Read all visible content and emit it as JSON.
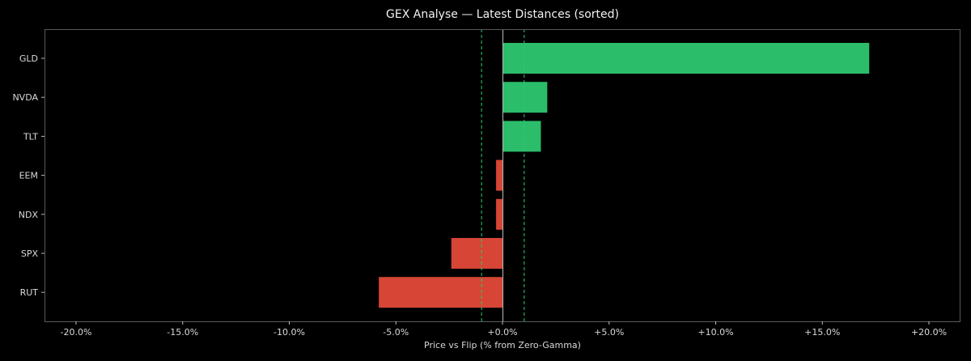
{
  "chart_data": {
    "type": "bar",
    "orientation": "horizontal",
    "title": "GEX Analyse — Latest Distances (sorted)",
    "xlabel": "Price vs Flip (% from Zero-Gamma)",
    "ylabel": "",
    "xlim": [
      -22,
      21.5
    ],
    "categories": [
      "GLD",
      "NVDA",
      "TLT",
      "EEM",
      "NDX",
      "SPX",
      "RUT"
    ],
    "values": [
      17.2,
      2.1,
      1.8,
      -0.3,
      -0.3,
      -2.4,
      -5.8
    ],
    "xticks": [
      -20,
      -15,
      -10,
      -5,
      0,
      5,
      10,
      15,
      20
    ],
    "xtick_labels": [
      "-20.0%",
      "-15.0%",
      "-10.0%",
      "-5.0%",
      "+0.0%",
      "+5.0%",
      "+10.0%",
      "+15.0%",
      "+20.0%"
    ],
    "reference_lines": [
      {
        "x": 0,
        "style": "solid",
        "color": "#bbbbbb"
      },
      {
        "x": -1,
        "style": "dashed",
        "color": "#2ecc71"
      },
      {
        "x": 1,
        "style": "dashed",
        "color": "#2ecc71"
      }
    ],
    "colors": {
      "positive": "#2bbd6a",
      "negative": "#d64535",
      "background": "#000000",
      "spine": "#555555"
    },
    "grid": false,
    "legend": null
  }
}
